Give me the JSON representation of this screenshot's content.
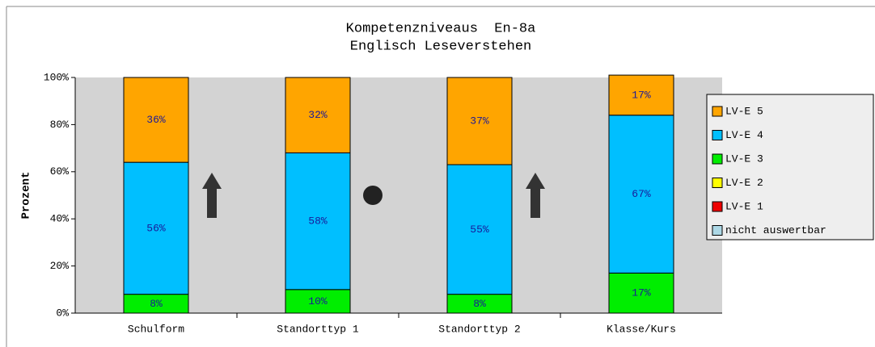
{
  "chart_data": {
    "type": "stacked_bar",
    "title": "Kompetenzniveaus  En-8a",
    "subtitle": "Englisch Leseverstehen",
    "y_label": "Prozent",
    "categories": [
      "Schulform",
      "Standorttyp 1",
      "Standorttyp 2",
      "Klasse/Kurs"
    ],
    "series": [
      {
        "name": "LV-E 5",
        "color": "#ffa500",
        "values": [
          36,
          32,
          37,
          17
        ],
        "value_labels": [
          "36%",
          "32%",
          "37%",
          "17%"
        ]
      },
      {
        "name": "LV-E 4",
        "color": "#00bfff",
        "values": [
          56,
          58,
          55,
          67
        ],
        "value_labels": [
          "56%",
          "58%",
          "55%",
          "67%"
        ]
      },
      {
        "name": "LV-E 3",
        "color": "#00ee00",
        "values": [
          8,
          10,
          8,
          17
        ],
        "value_labels": [
          "8%",
          "10%",
          "8%",
          "17%"
        ]
      },
      {
        "name": "LV-E 2",
        "color": "#ffff00",
        "values": [
          0,
          0,
          0,
          0
        ]
      },
      {
        "name": "LV-E 1",
        "color": "#ee0000",
        "values": [
          0,
          0,
          0,
          0
        ]
      },
      {
        "name": "nicht auswertbar",
        "color": "#add8e6",
        "values": [
          0,
          0,
          0,
          0
        ]
      }
    ],
    "ylim": [
      0,
      100
    ],
    "yticks": [
      {
        "value": 0,
        "label": "0%"
      },
      {
        "value": 20,
        "label": "20%"
      },
      {
        "value": 40,
        "label": "40%"
      },
      {
        "value": 60,
        "label": "60%"
      },
      {
        "value": 80,
        "label": "80%"
      },
      {
        "value": 100,
        "label": "100%"
      }
    ],
    "legend": "right"
  }
}
